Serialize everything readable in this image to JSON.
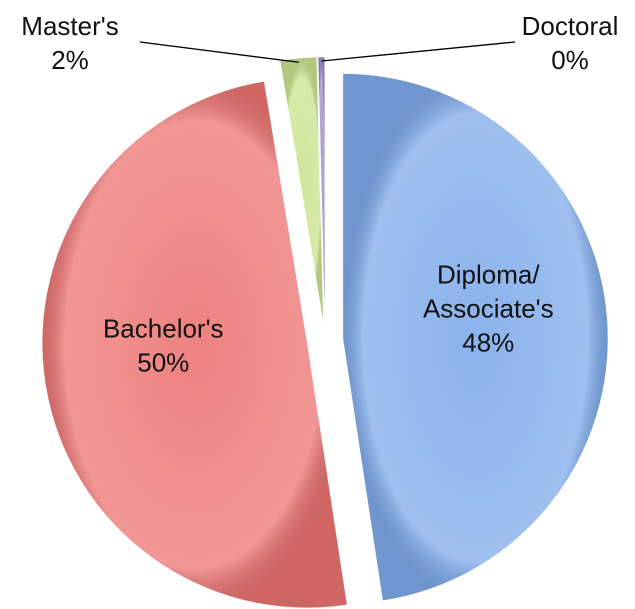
{
  "chart_data": {
    "type": "pie",
    "categories": [
      "Diploma/ Associate's",
      "Bachelor's",
      "Master's",
      "Doctoral"
    ],
    "values": [
      47.6,
      49.8,
      2.2,
      0.4
    ],
    "value_labels": [
      "48%",
      "50%",
      "2%",
      "0%"
    ],
    "colors": [
      "#7eaaea",
      "#ec7472",
      "#c9e38e",
      "#9d8ccc"
    ]
  }
}
